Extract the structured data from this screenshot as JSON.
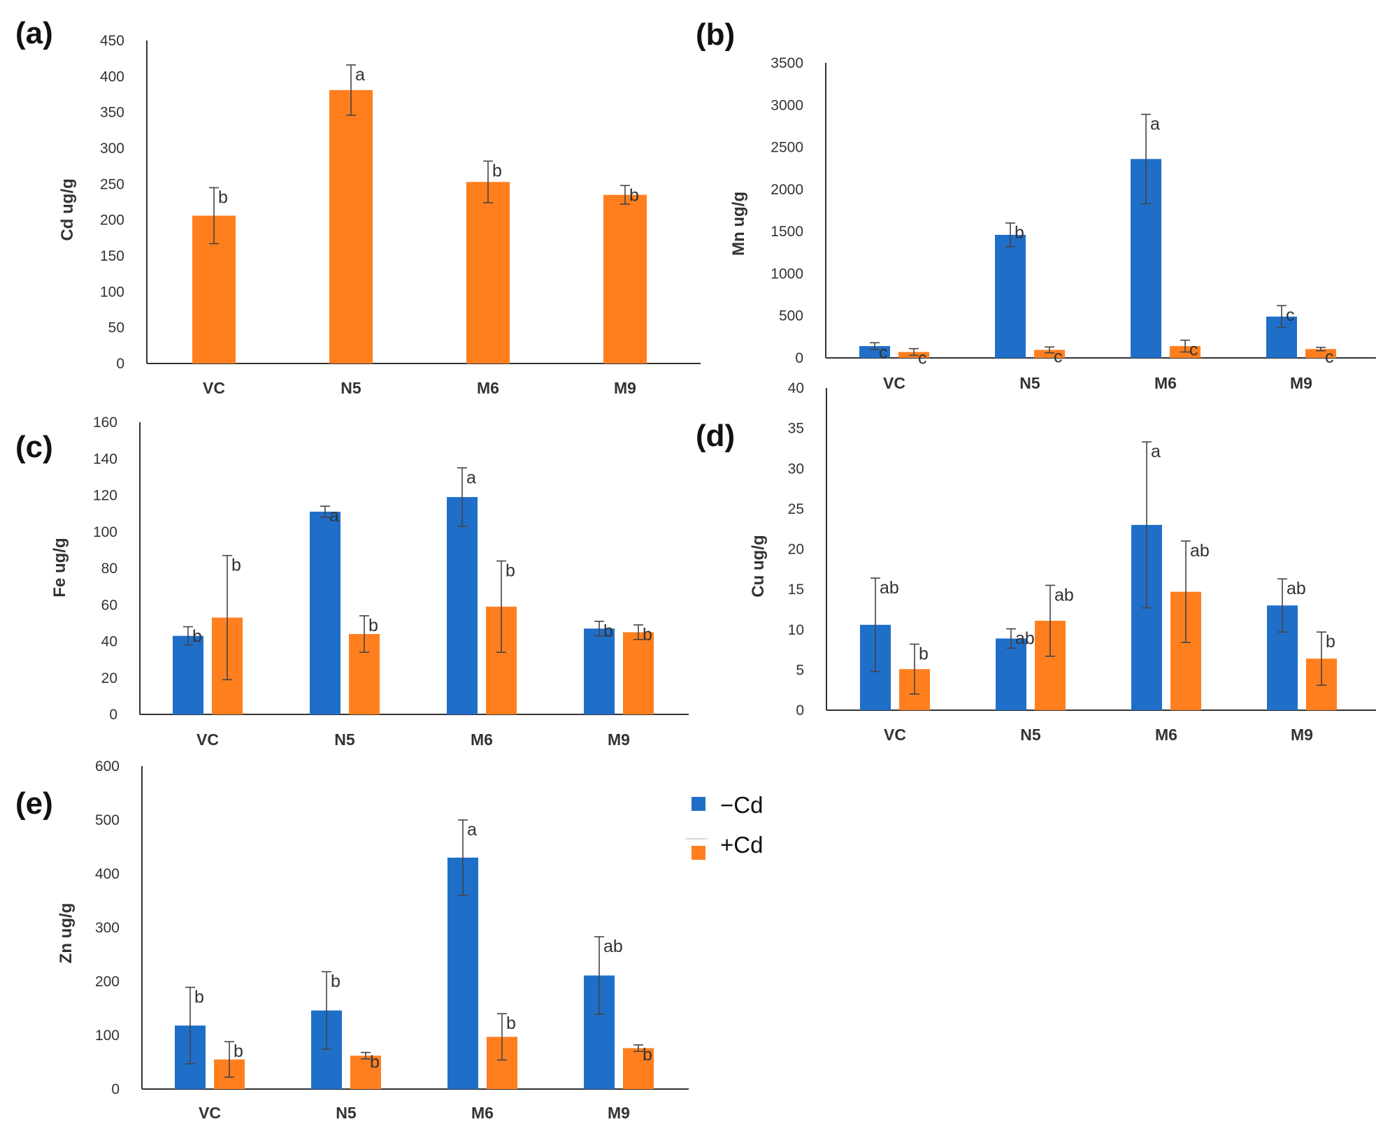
{
  "colors": {
    "minus_cd": "#1f6fc9",
    "plus_cd": "#ff7f1f"
  },
  "legend": [
    {
      "label": "−Cd",
      "color": "#1f6fc9"
    },
    {
      "label": "+Cd",
      "color": "#ff7f1f"
    }
  ],
  "chart_data": [
    {
      "panel": "(a)",
      "type": "bar",
      "categories": [
        "VC",
        "N5",
        "M6",
        "M9"
      ],
      "ylabel": "Cd  ug/g",
      "ylim": [
        0,
        450
      ],
      "yticks": [
        0,
        50,
        100,
        150,
        200,
        250,
        300,
        350,
        400,
        450
      ],
      "series": [
        {
          "color": "#ff7f1f",
          "values": [
            206,
            381,
            253,
            235
          ],
          "errors": [
            39,
            35,
            29,
            13
          ],
          "letters": [
            "b",
            "a",
            "b",
            "b"
          ]
        }
      ]
    },
    {
      "panel": "(b)",
      "type": "bar",
      "categories": [
        "VC",
        "N5",
        "M6",
        "M9"
      ],
      "ylabel": "Mn ug/g",
      "ylim": [
        0,
        3500
      ],
      "yticks": [
        0,
        500,
        1000,
        1500,
        2000,
        2500,
        3000,
        3500
      ],
      "series": [
        {
          "name": "−Cd",
          "color": "#1f6fc9",
          "values": [
            140,
            1460,
            2360,
            490
          ],
          "errors": [
            40,
            140,
            530,
            130
          ],
          "letters": [
            "c",
            "b",
            "a",
            "c"
          ]
        },
        {
          "name": "+Cd",
          "color": "#ff7f1f",
          "values": [
            70,
            95,
            140,
            105
          ],
          "errors": [
            40,
            35,
            70,
            20
          ],
          "letters": [
            "c",
            "c",
            "c",
            "c"
          ]
        }
      ]
    },
    {
      "panel": "(c)",
      "type": "bar",
      "categories": [
        "VC",
        "N5",
        "M6",
        "M9"
      ],
      "ylabel": "Fe ug/g",
      "ylim": [
        0,
        160
      ],
      "yticks": [
        0,
        20,
        40,
        60,
        80,
        100,
        120,
        140,
        160
      ],
      "series": [
        {
          "name": "−Cd",
          "color": "#1f6fc9",
          "values": [
            43,
            111,
            119,
            47
          ],
          "errors": [
            5,
            3,
            16,
            4
          ],
          "letters": [
            "b",
            "a",
            "a",
            "b"
          ]
        },
        {
          "name": "+Cd",
          "color": "#ff7f1f",
          "values": [
            53,
            44,
            59,
            45
          ],
          "errors": [
            34,
            10,
            25,
            4
          ],
          "letters": [
            "b",
            "b",
            "b",
            "b"
          ]
        }
      ]
    },
    {
      "panel": "(d)",
      "type": "bar",
      "categories": [
        "VC",
        "N5",
        "M6",
        "M9"
      ],
      "ylabel": "Cu ug/g",
      "ylim": [
        0,
        40
      ],
      "yticks": [
        0,
        5,
        10,
        15,
        20,
        25,
        30,
        35,
        40
      ],
      "series": [
        {
          "name": "−Cd",
          "color": "#1f6fc9",
          "values": [
            10.6,
            8.9,
            23,
            13
          ],
          "errors": [
            5.8,
            1.2,
            10.3,
            3.3
          ],
          "letters": [
            "ab",
            "ab",
            "a",
            "ab"
          ]
        },
        {
          "name": "+Cd",
          "color": "#ff7f1f",
          "values": [
            5.1,
            11.1,
            14.7,
            6.4
          ],
          "errors": [
            3.1,
            4.4,
            6.3,
            3.3
          ],
          "letters": [
            "b",
            "ab",
            "ab",
            "b"
          ]
        }
      ]
    },
    {
      "panel": "(e)",
      "type": "bar",
      "categories": [
        "VC",
        "N5",
        "M6",
        "M9"
      ],
      "ylabel": "Zn ug/g",
      "ylim": [
        0,
        600
      ],
      "yticks": [
        0,
        100,
        200,
        300,
        400,
        500,
        600
      ],
      "series": [
        {
          "name": "−Cd",
          "color": "#1f6fc9",
          "values": [
            118,
            146,
            430,
            211
          ],
          "errors": [
            71,
            72,
            70,
            72
          ],
          "letters": [
            "b",
            "b",
            "a",
            "ab"
          ]
        },
        {
          "name": "+Cd",
          "color": "#ff7f1f",
          "values": [
            55,
            62,
            97,
            76
          ],
          "errors": [
            33,
            6,
            43,
            6
          ],
          "letters": [
            "b",
            "b",
            "b",
            "b"
          ]
        }
      ]
    }
  ]
}
